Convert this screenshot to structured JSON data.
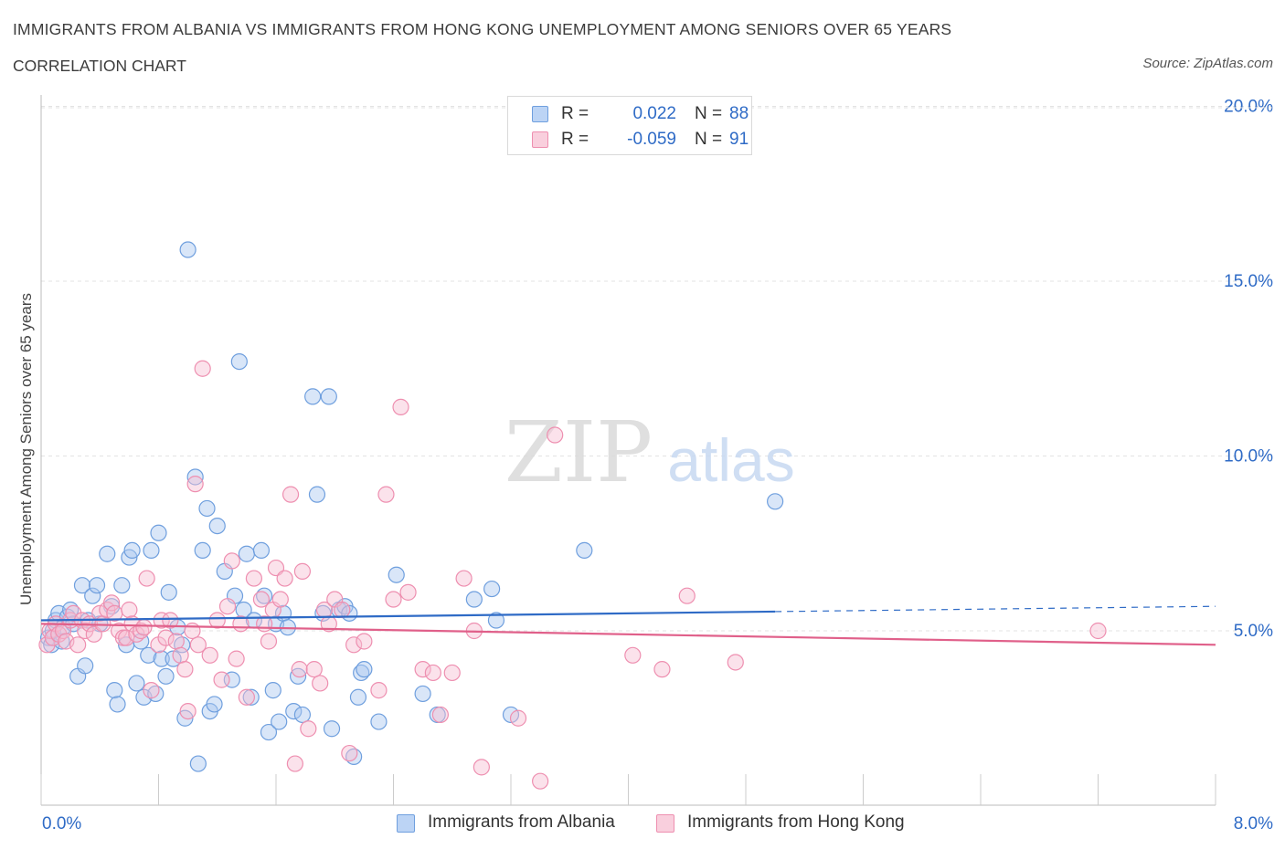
{
  "header": {
    "title": "IMMIGRANTS FROM ALBANIA VS IMMIGRANTS FROM HONG KONG UNEMPLOYMENT AMONG SENIORS OVER 65 YEARS",
    "subtitle": "CORRELATION CHART",
    "source": "Source: ZipAtlas.com"
  },
  "watermark": {
    "zip": "ZIP",
    "atlas": "atlas"
  },
  "legend": {
    "rows": [
      {
        "r_label": "R =",
        "r_value": "0.022",
        "n_label": "N =",
        "n_value": "88"
      },
      {
        "r_label": "R =",
        "r_value": "-0.059",
        "n_label": "N =",
        "n_value": "91"
      }
    ]
  },
  "bottom_legend": {
    "albania": "Immigrants from Albania",
    "hongkong": "Immigrants from Hong Kong"
  },
  "chart_data": {
    "type": "scatter",
    "ylabel": "Unemployment Among Seniors over 65 years",
    "xlim": [
      0,
      8
    ],
    "ylim": [
      0,
      20
    ],
    "x_tick_labels": [
      "0.0%",
      "8.0%"
    ],
    "y_ticks": [
      {
        "value": 5,
        "label": "5.0%"
      },
      {
        "value": 10,
        "label": "10.0%"
      },
      {
        "value": 15,
        "label": "15.0%"
      },
      {
        "value": 20,
        "label": "20.0%"
      }
    ],
    "grid": "horizontal dashed",
    "colors": {
      "albania_fill": "#aac8f0",
      "albania_stroke": "#6f9fde",
      "albania_line": "#2f6bc6",
      "hongkong_fill": "#f6bfd2",
      "hongkong_stroke": "#ee8fb0",
      "hongkong_line": "#e0608a",
      "value_text": "#2f6bc6"
    },
    "series": [
      {
        "name": "Immigrants from Albania",
        "trend": {
          "x0": 0,
          "y0": 5.3,
          "x1": 5.0,
          "y1": 5.55,
          "x_dash_end": 8.0,
          "y_dash_end": 5.7
        },
        "points": [
          [
            0.05,
            4.8
          ],
          [
            0.07,
            4.6
          ],
          [
            0.08,
            5.0
          ],
          [
            0.1,
            5.3
          ],
          [
            0.12,
            5.5
          ],
          [
            0.14,
            4.7
          ],
          [
            0.15,
            5.1
          ],
          [
            0.18,
            5.4
          ],
          [
            0.2,
            5.6
          ],
          [
            0.22,
            5.2
          ],
          [
            0.25,
            3.7
          ],
          [
            0.28,
            6.3
          ],
          [
            0.3,
            4.0
          ],
          [
            0.32,
            5.3
          ],
          [
            0.35,
            6.0
          ],
          [
            0.38,
            6.3
          ],
          [
            0.4,
            5.2
          ],
          [
            0.45,
            7.2
          ],
          [
            0.48,
            5.7
          ],
          [
            0.5,
            3.3
          ],
          [
            0.52,
            2.9
          ],
          [
            0.55,
            6.3
          ],
          [
            0.58,
            4.6
          ],
          [
            0.6,
            7.1
          ],
          [
            0.62,
            7.3
          ],
          [
            0.65,
            3.5
          ],
          [
            0.68,
            4.7
          ],
          [
            0.7,
            3.1
          ],
          [
            0.73,
            4.3
          ],
          [
            0.75,
            7.3
          ],
          [
            0.78,
            3.2
          ],
          [
            0.8,
            7.8
          ],
          [
            0.82,
            4.2
          ],
          [
            0.85,
            3.7
          ],
          [
            0.87,
            6.1
          ],
          [
            0.9,
            4.2
          ],
          [
            0.93,
            5.1
          ],
          [
            0.96,
            4.6
          ],
          [
            0.98,
            2.5
          ],
          [
            1.0,
            15.9
          ],
          [
            1.05,
            9.4
          ],
          [
            1.07,
            1.2
          ],
          [
            1.1,
            7.3
          ],
          [
            1.13,
            8.5
          ],
          [
            1.15,
            2.7
          ],
          [
            1.18,
            2.9
          ],
          [
            1.2,
            8.0
          ],
          [
            1.25,
            6.7
          ],
          [
            1.3,
            3.6
          ],
          [
            1.32,
            6.0
          ],
          [
            1.35,
            12.7
          ],
          [
            1.38,
            5.6
          ],
          [
            1.4,
            7.2
          ],
          [
            1.43,
            3.1
          ],
          [
            1.45,
            5.3
          ],
          [
            1.5,
            7.3
          ],
          [
            1.52,
            6.0
          ],
          [
            1.55,
            2.1
          ],
          [
            1.58,
            3.3
          ],
          [
            1.6,
            5.2
          ],
          [
            1.62,
            2.4
          ],
          [
            1.65,
            5.5
          ],
          [
            1.68,
            5.1
          ],
          [
            1.72,
            2.7
          ],
          [
            1.75,
            3.7
          ],
          [
            1.78,
            2.6
          ],
          [
            1.85,
            11.7
          ],
          [
            1.88,
            8.9
          ],
          [
            1.92,
            5.5
          ],
          [
            1.96,
            11.7
          ],
          [
            1.98,
            2.2
          ],
          [
            2.03,
            5.6
          ],
          [
            2.07,
            5.7
          ],
          [
            2.1,
            5.5
          ],
          [
            2.13,
            1.4
          ],
          [
            2.16,
            3.1
          ],
          [
            2.18,
            3.8
          ],
          [
            2.2,
            3.9
          ],
          [
            2.3,
            2.4
          ],
          [
            2.42,
            6.6
          ],
          [
            2.6,
            3.2
          ],
          [
            2.7,
            2.6
          ],
          [
            2.95,
            5.9
          ],
          [
            3.07,
            6.2
          ],
          [
            3.1,
            5.3
          ],
          [
            3.2,
            2.6
          ],
          [
            3.7,
            7.3
          ],
          [
            5.0,
            8.7
          ]
        ]
      },
      {
        "name": "Immigrants from Hong Kong",
        "trend": {
          "x0": 0,
          "y0": 5.2,
          "x1": 8.0,
          "y1": 4.6
        },
        "points": [
          [
            0.04,
            4.6
          ],
          [
            0.06,
            5.0
          ],
          [
            0.08,
            4.8
          ],
          [
            0.1,
            5.2
          ],
          [
            0.12,
            4.9
          ],
          [
            0.15,
            5.0
          ],
          [
            0.17,
            4.7
          ],
          [
            0.2,
            5.3
          ],
          [
            0.22,
            5.5
          ],
          [
            0.25,
            4.6
          ],
          [
            0.28,
            5.3
          ],
          [
            0.3,
            5.0
          ],
          [
            0.33,
            5.2
          ],
          [
            0.36,
            4.9
          ],
          [
            0.4,
            5.5
          ],
          [
            0.42,
            5.2
          ],
          [
            0.45,
            5.6
          ],
          [
            0.48,
            5.8
          ],
          [
            0.5,
            5.5
          ],
          [
            0.53,
            5.0
          ],
          [
            0.56,
            4.8
          ],
          [
            0.58,
            4.8
          ],
          [
            0.6,
            5.6
          ],
          [
            0.62,
            5.2
          ],
          [
            0.65,
            4.9
          ],
          [
            0.68,
            5.0
          ],
          [
            0.7,
            5.1
          ],
          [
            0.72,
            6.5
          ],
          [
            0.75,
            3.3
          ],
          [
            0.8,
            4.6
          ],
          [
            0.82,
            5.3
          ],
          [
            0.85,
            4.8
          ],
          [
            0.88,
            5.3
          ],
          [
            0.92,
            4.7
          ],
          [
            0.95,
            4.3
          ],
          [
            0.98,
            3.9
          ],
          [
            1.0,
            2.7
          ],
          [
            1.03,
            5.0
          ],
          [
            1.05,
            9.2
          ],
          [
            1.07,
            4.6
          ],
          [
            1.1,
            12.5
          ],
          [
            1.15,
            4.3
          ],
          [
            1.2,
            5.3
          ],
          [
            1.23,
            3.6
          ],
          [
            1.27,
            5.7
          ],
          [
            1.3,
            7.0
          ],
          [
            1.33,
            4.2
          ],
          [
            1.36,
            5.2
          ],
          [
            1.4,
            3.1
          ],
          [
            1.45,
            6.5
          ],
          [
            1.5,
            5.9
          ],
          [
            1.52,
            5.2
          ],
          [
            1.55,
            4.7
          ],
          [
            1.58,
            5.6
          ],
          [
            1.6,
            6.8
          ],
          [
            1.63,
            5.9
          ],
          [
            1.66,
            6.5
          ],
          [
            1.7,
            8.9
          ],
          [
            1.73,
            1.2
          ],
          [
            1.76,
            3.9
          ],
          [
            1.78,
            6.7
          ],
          [
            1.82,
            2.2
          ],
          [
            1.86,
            3.9
          ],
          [
            1.9,
            3.5
          ],
          [
            1.93,
            5.6
          ],
          [
            1.96,
            5.2
          ],
          [
            2.0,
            5.9
          ],
          [
            2.05,
            5.6
          ],
          [
            2.1,
            1.5
          ],
          [
            2.13,
            4.6
          ],
          [
            2.2,
            4.7
          ],
          [
            2.3,
            3.3
          ],
          [
            2.35,
            8.9
          ],
          [
            2.4,
            5.9
          ],
          [
            2.45,
            11.4
          ],
          [
            2.5,
            6.1
          ],
          [
            2.6,
            3.9
          ],
          [
            2.67,
            3.8
          ],
          [
            2.72,
            2.6
          ],
          [
            2.8,
            3.8
          ],
          [
            2.88,
            6.5
          ],
          [
            2.95,
            5.0
          ],
          [
            3.0,
            1.1
          ],
          [
            3.25,
            2.5
          ],
          [
            3.4,
            0.7
          ],
          [
            3.5,
            10.6
          ],
          [
            4.03,
            4.3
          ],
          [
            4.23,
            3.9
          ],
          [
            4.4,
            6.0
          ],
          [
            4.73,
            4.1
          ],
          [
            7.2,
            5.0
          ]
        ]
      }
    ]
  }
}
